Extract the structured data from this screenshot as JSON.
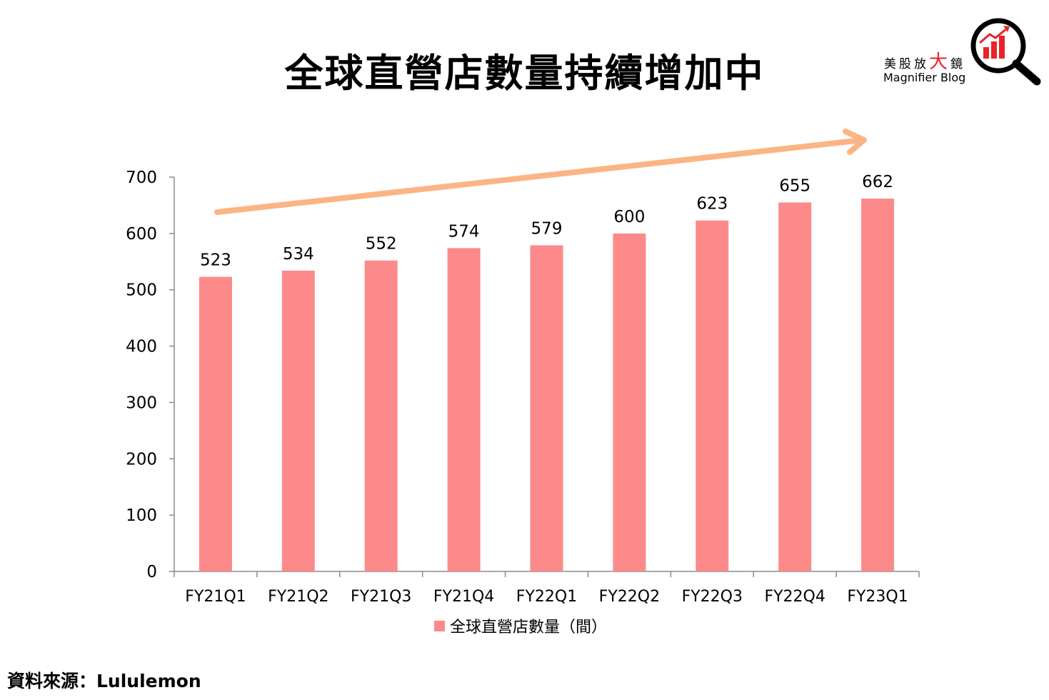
{
  "header": {
    "title": "全球直營店數量持續增加中"
  },
  "logo": {
    "cn_prefix": "美股放",
    "cn_big": "大",
    "cn_suffix": "鏡",
    "en": "Magnifier Blog"
  },
  "source": "資料來源：Lululemon",
  "colors": {
    "bar": "#fd8a8a",
    "arrow": "#fbb584",
    "logo_red": "#e8232a"
  },
  "chart_data": {
    "type": "bar",
    "title": "全球直營店數量持續增加中",
    "categories": [
      "FY21Q1",
      "FY21Q2",
      "FY21Q3",
      "FY21Q4",
      "FY22Q1",
      "FY22Q2",
      "FY22Q3",
      "FY22Q4",
      "FY23Q1"
    ],
    "series": [
      {
        "name": "全球直營店數量（間）",
        "values": [
          523,
          534,
          552,
          574,
          579,
          600,
          623,
          655,
          662
        ]
      }
    ],
    "ylim": [
      0,
      700
    ],
    "yticks": [
      0,
      100,
      200,
      300,
      400,
      500,
      600,
      700
    ],
    "xlabel": "",
    "ylabel": "",
    "grid": false,
    "legend": "bottom",
    "annotations": [
      "upward trend arrow"
    ]
  }
}
